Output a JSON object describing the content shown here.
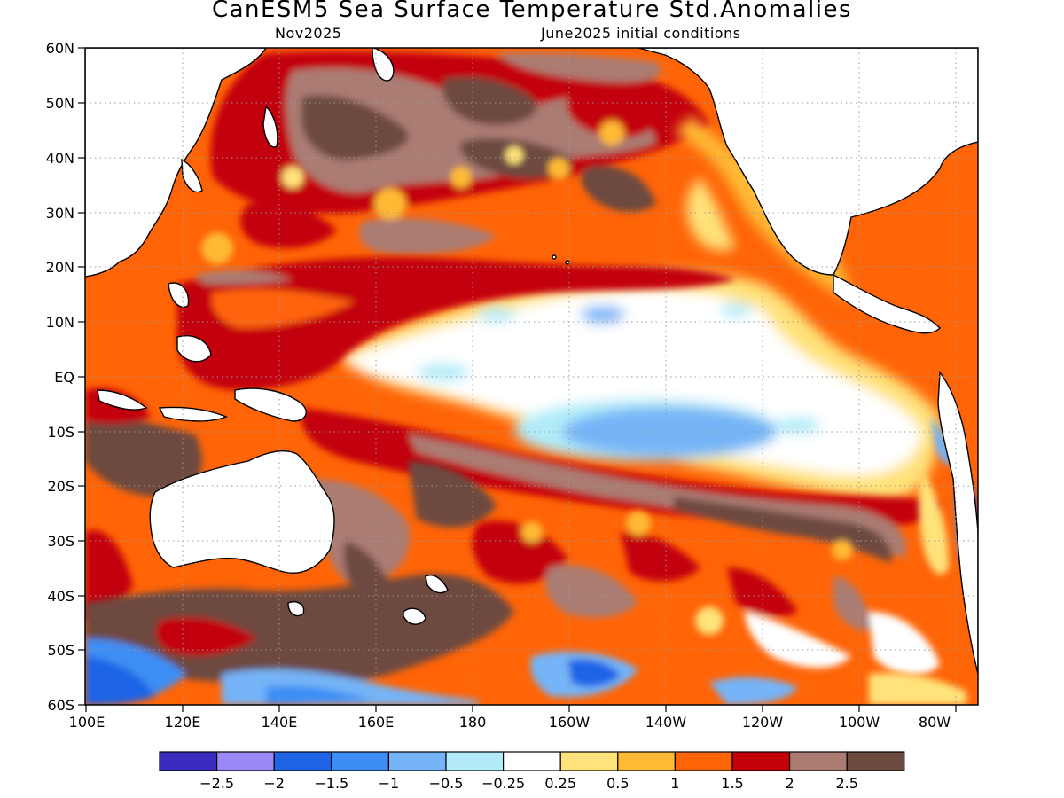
{
  "header": {
    "title": "CanESM5 Sea Surface Temperature Std.Anomalies",
    "valid_month": "Nov2025",
    "init_conditions": "June2025 initial conditions"
  },
  "axes": {
    "lat_labels": [
      "60N",
      "50N",
      "40N",
      "30N",
      "20N",
      "10N",
      "EQ",
      "10S",
      "20S",
      "30S",
      "40S",
      "50S",
      "60S"
    ],
    "lon_labels": [
      "100E",
      "120E",
      "140E",
      "160E",
      "180",
      "160W",
      "140W",
      "120W",
      "100W",
      "80W"
    ]
  },
  "colorbar": {
    "colors": [
      "#3b2bbf",
      "#9b87f5",
      "#1f63e6",
      "#3c8ef5",
      "#75b4f7",
      "#b1ecf8",
      "#ffffff",
      "#ffe27a",
      "#ffb934",
      "#ff6407",
      "#c30008",
      "#aa7c72",
      "#6d4a40"
    ],
    "labels": [
      "−2.5",
      "−2",
      "−1.5",
      "−1",
      "−0.5",
      "−0.25",
      "0.25",
      "0.5",
      "1",
      "1.5",
      "2",
      "2.5"
    ]
  }
}
